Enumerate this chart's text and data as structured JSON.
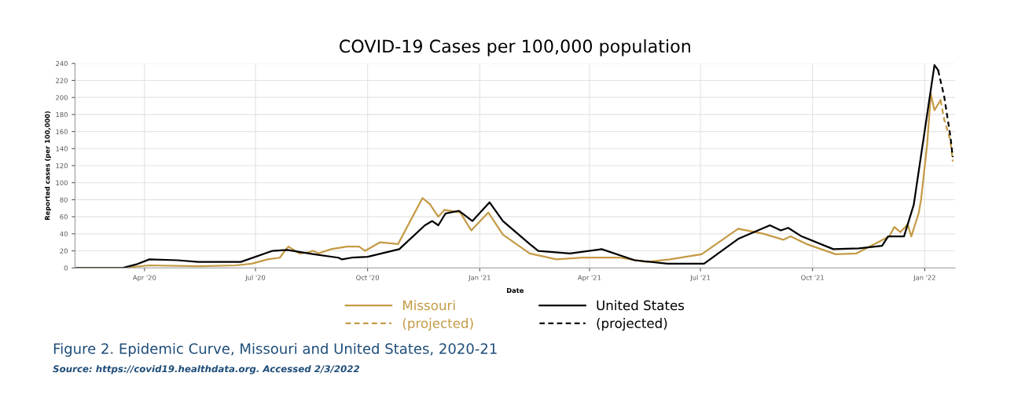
{
  "chart_data": {
    "type": "line",
    "title": "COVID-19 Cases per 100,000 population",
    "xlabel": "Date",
    "ylabel": "Reported cases (per 100,000)",
    "xlim": [
      "2020-02-04",
      "2022-01-26"
    ],
    "ylim": [
      0,
      240
    ],
    "xticks": [
      {
        "value": "2020-04-01",
        "label": "Apr '20"
      },
      {
        "value": "2020-07-01",
        "label": "Jul '20"
      },
      {
        "value": "2020-10-01",
        "label": "Oct '20"
      },
      {
        "value": "2021-01-01",
        "label": "Jan '21"
      },
      {
        "value": "2021-04-01",
        "label": "Apr '21"
      },
      {
        "value": "2021-07-01",
        "label": "Jul '21"
      },
      {
        "value": "2021-10-01",
        "label": "Oct '21"
      },
      {
        "value": "2022-01-01",
        "label": "Jan '22"
      }
    ],
    "yticks": [
      0,
      20,
      40,
      60,
      80,
      100,
      120,
      140,
      160,
      180,
      200,
      220,
      240
    ],
    "grid": true,
    "legend": "bottom",
    "marker": "none",
    "series": [
      {
        "name": "Missouri",
        "color": "#c49a45",
        "line_style": "solid",
        "x": [
          "2020-02-05",
          "2020-03-14",
          "2020-04-05",
          "2020-05-15",
          "2020-06-15",
          "2020-06-28",
          "2020-07-11",
          "2020-07-21",
          "2020-07-25",
          "2020-07-28",
          "2020-08-06",
          "2020-08-13",
          "2020-08-17",
          "2020-08-22",
          "2020-09-01",
          "2020-09-14",
          "2020-09-24",
          "2020-09-29",
          "2020-10-11",
          "2020-10-26",
          "2020-11-15",
          "2020-11-21",
          "2020-11-28",
          "2020-12-03",
          "2020-12-16",
          "2020-12-25",
          "2021-01-08",
          "2021-01-20",
          "2021-02-11",
          "2021-03-05",
          "2021-03-26",
          "2021-04-26",
          "2021-05-18",
          "2021-06-06",
          "2021-07-02",
          "2021-07-23",
          "2021-08-01",
          "2021-08-22",
          "2021-09-07",
          "2021-09-13",
          "2021-09-26",
          "2021-10-20",
          "2021-11-06",
          "2021-11-21",
          "2021-12-03",
          "2021-12-07",
          "2021-12-12",
          "2021-12-18",
          "2021-12-21",
          "2021-12-27",
          "2021-12-29",
          "2022-01-03",
          "2022-01-06",
          "2022-01-09",
          "2022-01-14"
        ],
        "values": [
          0,
          0,
          3,
          2,
          3,
          5,
          10,
          12,
          20,
          25,
          17,
          18,
          20,
          17,
          22,
          25,
          25,
          20,
          30,
          28,
          82,
          75,
          60,
          68,
          65,
          44,
          65,
          39,
          17,
          10,
          12,
          12,
          7,
          10,
          16,
          37,
          46,
          40,
          33,
          37,
          28,
          16,
          17,
          28,
          37,
          48,
          42,
          51,
          37,
          64,
          80,
          145,
          204,
          185,
          197
        ]
      },
      {
        "name": "(projected)",
        "color": "#c49a45",
        "line_style": "dashed",
        "x": [
          "2022-01-14",
          "2022-01-17",
          "2022-01-22",
          "2022-01-24"
        ],
        "values": [
          197,
          174,
          150,
          125
        ]
      },
      {
        "name": "United States",
        "color": "#000000",
        "line_style": "solid",
        "x": [
          "2020-02-05",
          "2020-03-14",
          "2020-03-25",
          "2020-04-05",
          "2020-04-28",
          "2020-05-15",
          "2020-06-19",
          "2020-07-15",
          "2020-07-27",
          "2020-08-18",
          "2020-09-07",
          "2020-09-10",
          "2020-09-18",
          "2020-10-01",
          "2020-10-27",
          "2020-11-17",
          "2020-11-23",
          "2020-11-28",
          "2020-12-04",
          "2020-12-15",
          "2020-12-26",
          "2021-01-09",
          "2021-01-20",
          "2021-02-11",
          "2021-02-18",
          "2021-03-16",
          "2021-04-11",
          "2021-05-08",
          "2021-06-04",
          "2021-07-04",
          "2021-08-01",
          "2021-08-27",
          "2021-09-05",
          "2021-09-11",
          "2021-09-22",
          "2021-10-18",
          "2021-11-08",
          "2021-11-27",
          "2021-12-02",
          "2021-12-15",
          "2021-12-23",
          "2022-01-01",
          "2022-01-09",
          "2022-01-12"
        ],
        "values": [
          0,
          0,
          4,
          10,
          9,
          7,
          7,
          20,
          21,
          16,
          12,
          10,
          12,
          13,
          22,
          50,
          55,
          50,
          64,
          67,
          55,
          77,
          55,
          28,
          20,
          17,
          22,
          9,
          5,
          5,
          34,
          50,
          44,
          47,
          37,
          22,
          23,
          26,
          37,
          37,
          74,
          161,
          238,
          232
        ]
      },
      {
        "name": "(projected)",
        "color": "#000000",
        "line_style": "dashed",
        "x": [
          "2022-01-12",
          "2022-01-17",
          "2022-01-22",
          "2022-01-24"
        ],
        "values": [
          232,
          201,
          155,
          130
        ]
      }
    ],
    "annotations": [
      "Figure 2. Epidemic Curve, Missouri and United States, 2020-21",
      "Source: https://covid19.healthdata.org. Accessed 2/3/2022"
    ]
  }
}
